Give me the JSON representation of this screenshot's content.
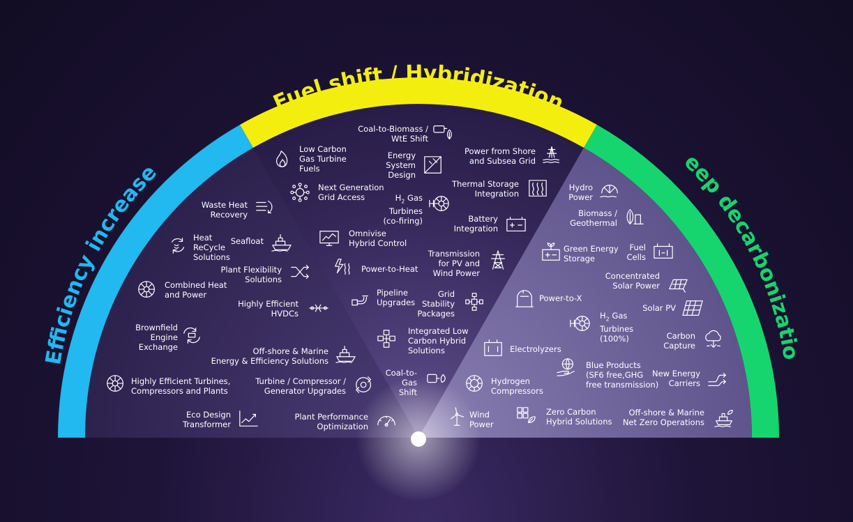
{
  "sections": {
    "efficiency": {
      "title": "Efficiency increase",
      "color": "#22b8f0"
    },
    "fuel_shift": {
      "title": "Fuel shift / Hybridization",
      "color": "#f4ee0f"
    },
    "deep": {
      "title": "Deep decarbonization",
      "color": "#16d56e"
    }
  },
  "efficiency_items": [
    {
      "label": "Waste Heat\nRecovery",
      "icon": "waste-heat-icon"
    },
    {
      "label": "Heat\nReCycle\nSolutions",
      "icon": "recycle-icon"
    },
    {
      "label": "Seafloat",
      "icon": "ship-icon"
    },
    {
      "label": "Plant Flexibility\nSolutions",
      "icon": "shuffle-icon"
    },
    {
      "label": "Combined Heat\nand Power",
      "icon": "turbine-icon"
    },
    {
      "label": "Highly Efficient\nHVDCs",
      "icon": "hvdc-icon"
    },
    {
      "label": "Brownfield\nEngine\nExchange",
      "icon": "exchange-icon"
    },
    {
      "label": "Off-shore & Marine\nEnergy & Efficiency Solutions",
      "icon": "ship-icon"
    },
    {
      "label": "Highly Efficient Turbines,\nCompressors and Plants",
      "icon": "turbine-icon"
    },
    {
      "label": "Turbine / Compressor /\nGenerator Upgrades",
      "icon": "upgrade-icon"
    },
    {
      "label": "Eco Design\nTransformer",
      "icon": "chart-up-icon"
    },
    {
      "label": "Plant Performance\nOptimization",
      "icon": "gauge-icon"
    }
  ],
  "fuel_items": [
    {
      "label": "Coal-to-Biomass /\nWtE Shift",
      "icon": "coal-biomass-icon"
    },
    {
      "label": "Low Carbon\nGas Turbine\nFuels",
      "icon": "flame-icon"
    },
    {
      "label": "Energy\nSystem\nDesign",
      "icon": "design-icon"
    },
    {
      "label": "Power from Shore\nand Subsea Grid",
      "icon": "shore-icon"
    },
    {
      "label": "Next Generation\nGrid Access",
      "icon": "grid-access-icon"
    },
    {
      "label": "Thermal Storage\nIntegration",
      "icon": "thermal-icon"
    },
    {
      "label": "Gas\nTurbines\n(co-firing)",
      "prefix": "H",
      "sub": "2",
      "icon": "h2-turbine-icon"
    },
    {
      "label": "Battery\nIntegration",
      "icon": "battery-icon"
    },
    {
      "label": "Omnivise\nHybrid Control",
      "icon": "monitor-icon"
    },
    {
      "label": "Transmission\nfor PV and\nWind Power",
      "icon": "pylon-icon"
    },
    {
      "label": "Power-to-Heat",
      "icon": "power-heat-icon"
    },
    {
      "label": "Pipeline\nUpgrades",
      "icon": "pipeline-icon"
    },
    {
      "label": "Grid\nStability\nPackages",
      "icon": "grid-stability-icon"
    },
    {
      "label": "Integrated Low\nCarbon Hybrid\nSolutions",
      "icon": "hybrid-icon"
    },
    {
      "label": "Coal-to-\nGas\nShift",
      "icon": "coal-gas-icon"
    }
  ],
  "deep_items": [
    {
      "label": "Hydro\nPower",
      "icon": "hydro-icon"
    },
    {
      "label": "Biomass /\nGeothermal",
      "icon": "biomass-icon"
    },
    {
      "label": "Green Energy\nStorage",
      "icon": "green-storage-icon"
    },
    {
      "label": "Fuel\nCells",
      "icon": "fuel-cell-icon"
    },
    {
      "label": "Concentrated\nSolar Power",
      "icon": "csp-icon"
    },
    {
      "label": "Power-to-X",
      "icon": "tank-icon"
    },
    {
      "label": "Solar PV",
      "icon": "solar-panel-icon"
    },
    {
      "label": "Gas\nTurbines\n(100%)",
      "prefix": "H",
      "sub": "2",
      "icon": "h2-turbine-icon"
    },
    {
      "label": "Carbon\nCapture",
      "icon": "co2-cloud-icon"
    },
    {
      "label": "Electrolyzers",
      "icon": "electrolyzer-icon"
    },
    {
      "label": "Blue Products\n(SF6 free,GHG\nfree transmission)",
      "icon": "globe-hand-icon"
    },
    {
      "label": "New Energy\nCarriers",
      "icon": "arrows-icon"
    },
    {
      "label": "Hydrogen\nCompressors",
      "icon": "compressor-icon"
    },
    {
      "label": "Wind\nPower",
      "icon": "wind-icon"
    },
    {
      "label": "Zero Carbon\nHybrid Solutions",
      "icon": "zero-hybrid-icon"
    },
    {
      "label": "Off-shore & Marine\nNet Zero Operations",
      "icon": "ship-leaf-icon"
    }
  ]
}
